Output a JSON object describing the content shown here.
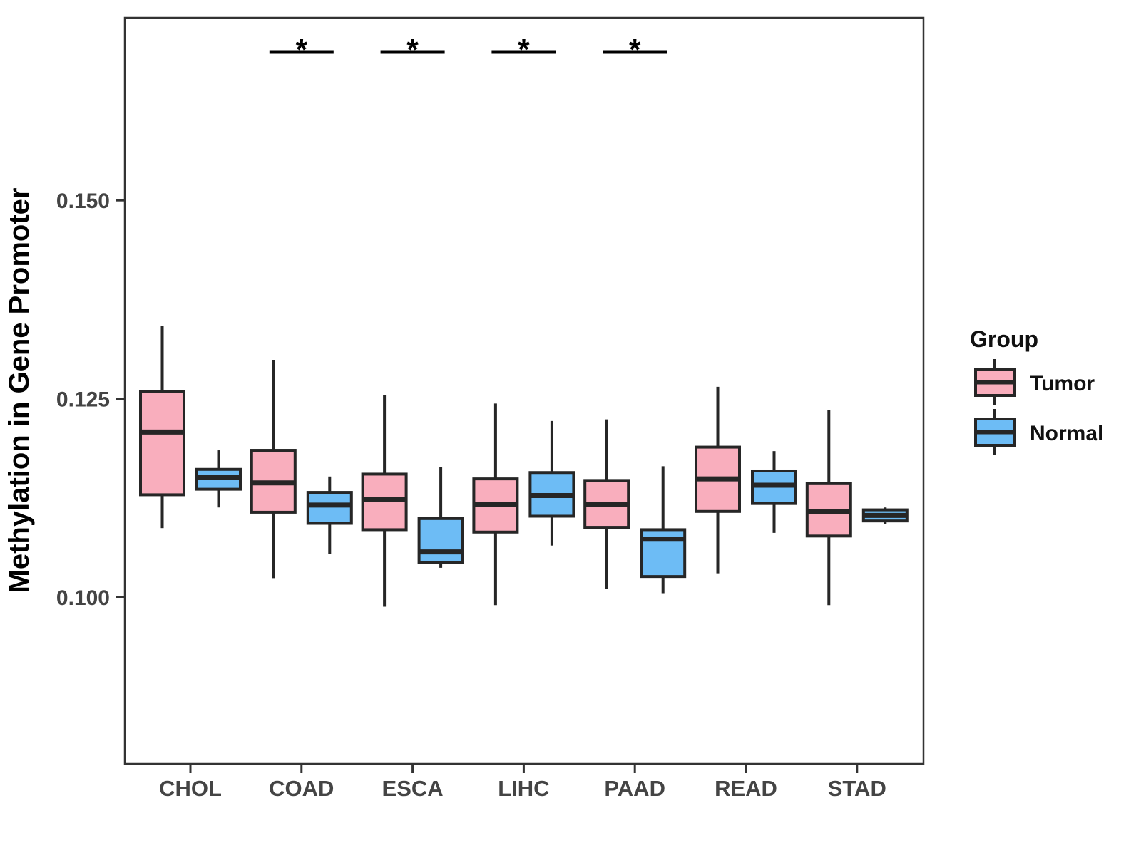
{
  "chart_data": {
    "type": "boxplot",
    "title": "",
    "xlabel": "",
    "ylabel": "Methylation in Gene Promoter",
    "categories": [
      "CHOL",
      "COAD",
      "ESCA",
      "LIHC",
      "PAAD",
      "READ",
      "STAD"
    ],
    "ylim": [
      0.079,
      0.173
    ],
    "y_ticks": [
      {
        "value": 0.15,
        "label": "0.150"
      },
      {
        "value": 0.125,
        "label": "0.125"
      },
      {
        "value": 0.1,
        "label": "0.100"
      }
    ],
    "grid": "off",
    "legend": {
      "title": "Group",
      "position": "right"
    },
    "series": [
      {
        "name": "Tumor",
        "color": "#F9AEBD",
        "stroke": "#262626",
        "boxes": [
          {
            "category": "CHOL",
            "whisker_low": 0.1087,
            "q1": 0.1129,
            "median": 0.1208,
            "q3": 0.1259,
            "whisker_high": 0.1342
          },
          {
            "category": "COAD",
            "whisker_low": 0.1024,
            "q1": 0.1107,
            "median": 0.1144,
            "q3": 0.1185,
            "whisker_high": 0.1299
          },
          {
            "category": "ESCA",
            "whisker_low": 0.0988,
            "q1": 0.1085,
            "median": 0.1123,
            "q3": 0.1155,
            "whisker_high": 0.1255
          },
          {
            "category": "LIHC",
            "whisker_low": 0.099,
            "q1": 0.1082,
            "median": 0.1117,
            "q3": 0.1149,
            "whisker_high": 0.1244
          },
          {
            "category": "PAAD",
            "whisker_low": 0.101,
            "q1": 0.1088,
            "median": 0.1117,
            "q3": 0.1147,
            "whisker_high": 0.1224
          },
          {
            "category": "READ",
            "whisker_low": 0.103,
            "q1": 0.1108,
            "median": 0.1149,
            "q3": 0.1189,
            "whisker_high": 0.1265
          },
          {
            "category": "STAD",
            "whisker_low": 0.099,
            "q1": 0.1077,
            "median": 0.1108,
            "q3": 0.1143,
            "whisker_high": 0.1236
          }
        ]
      },
      {
        "name": "Normal",
        "color": "#6DBCF5",
        "stroke": "#262626",
        "boxes": [
          {
            "category": "CHOL",
            "whisker_low": 0.1113,
            "q1": 0.1136,
            "median": 0.1151,
            "q3": 0.1161,
            "whisker_high": 0.1185
          },
          {
            "category": "COAD",
            "whisker_low": 0.1054,
            "q1": 0.1093,
            "median": 0.1116,
            "q3": 0.1132,
            "whisker_high": 0.1152
          },
          {
            "category": "ESCA",
            "whisker_low": 0.1037,
            "q1": 0.1044,
            "median": 0.1057,
            "q3": 0.1099,
            "whisker_high": 0.1164
          },
          {
            "category": "LIHC",
            "whisker_low": 0.1065,
            "q1": 0.1102,
            "median": 0.1128,
            "q3": 0.1157,
            "whisker_high": 0.1222
          },
          {
            "category": "PAAD",
            "whisker_low": 0.1005,
            "q1": 0.1026,
            "median": 0.1073,
            "q3": 0.1085,
            "whisker_high": 0.1165
          },
          {
            "category": "READ",
            "whisker_low": 0.1081,
            "q1": 0.1118,
            "median": 0.1141,
            "q3": 0.1159,
            "whisker_high": 0.1184
          },
          {
            "category": "STAD",
            "whisker_low": 0.1092,
            "q1": 0.1096,
            "median": 0.1103,
            "q3": 0.111,
            "whisker_high": 0.1113
          }
        ]
      }
    ],
    "significance": [
      {
        "category": "COAD",
        "label": "*"
      },
      {
        "category": "ESCA",
        "label": "*"
      },
      {
        "category": "LIHC",
        "label": "*"
      },
      {
        "category": "PAAD",
        "label": "*"
      }
    ]
  }
}
